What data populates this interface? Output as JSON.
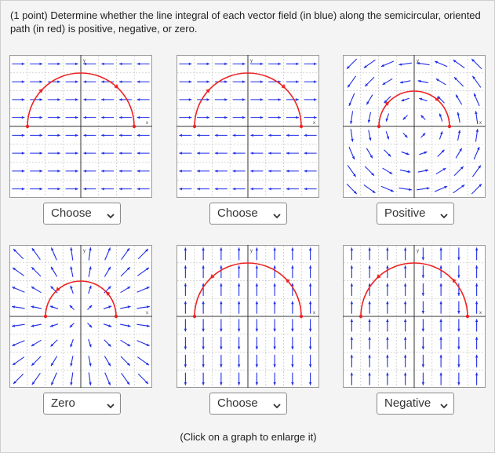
{
  "question": {
    "prefix": "(1 point) ",
    "text": "Determine whether the line integral of each vector field (in blue) along the semicircular, oriented path (in red) is positive, negative, or zero."
  },
  "plots": [
    {
      "field": "horizontal-split",
      "path_direction": "clockwise",
      "answer": "Choose"
    },
    {
      "field": "horizontal-split-2",
      "path_direction": "clockwise",
      "answer": "Choose"
    },
    {
      "field": "rotational-ccw",
      "path_direction": "clockwise",
      "answer": "Positive"
    },
    {
      "field": "radial-outward",
      "path_direction": "counterclockwise",
      "answer": "Zero"
    },
    {
      "field": "vertical-split",
      "path_direction": "counterclockwise",
      "answer": "Choose"
    },
    {
      "field": "vertical-mixed",
      "path_direction": "counterclockwise",
      "answer": "Negative"
    }
  ],
  "axis_labels": {
    "x": "x",
    "y": "y"
  },
  "colors": {
    "field": "#1f2ee6",
    "path": "#ee2222",
    "grid": "#c9c9c9",
    "axis": "#333333"
  },
  "footer": "(Click on a graph to enlarge it)"
}
